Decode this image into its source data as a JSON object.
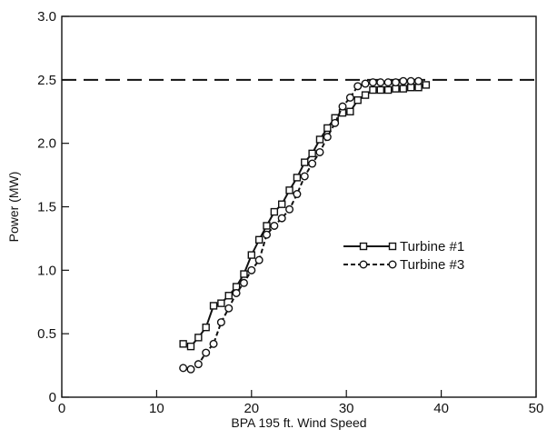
{
  "chart_data": {
    "type": "line",
    "title": "",
    "xlabel": "BPA 195 ft. Wind Speed",
    "ylabel": "Power (MW)",
    "xlim": [
      0,
      50
    ],
    "ylim": [
      0,
      3.0
    ],
    "x_ticks": [
      0,
      10,
      20,
      30,
      40,
      50
    ],
    "y_ticks": [
      0,
      0.5,
      1.0,
      1.5,
      2.0,
      2.5,
      3.0
    ],
    "x_tick_labels": [
      "0",
      "10",
      "20",
      "30",
      "40",
      "50"
    ],
    "y_tick_labels": [
      "0",
      "0.5",
      "1.0",
      "1.5",
      "2.0",
      "2.5",
      "3.0"
    ],
    "grid": false,
    "legend_position": "center-right",
    "reference_line": {
      "y": 2.5,
      "style": "dashed"
    },
    "series": [
      {
        "name": "Turbine #1",
        "line_style": "solid",
        "marker": "square",
        "color": "#111111",
        "x": [
          12.8,
          13.6,
          14.4,
          15.2,
          16.0,
          16.8,
          17.6,
          18.4,
          19.2,
          20.0,
          20.8,
          21.6,
          22.4,
          23.2,
          24.0,
          24.8,
          25.6,
          26.4,
          27.2,
          28.0,
          28.8,
          29.6,
          30.4,
          31.2,
          32.0,
          32.8,
          33.6,
          34.4,
          35.2,
          36.0,
          36.8,
          37.6,
          38.4
        ],
        "y": [
          0.42,
          0.4,
          0.47,
          0.55,
          0.72,
          0.74,
          0.8,
          0.87,
          0.97,
          1.12,
          1.24,
          1.35,
          1.46,
          1.52,
          1.63,
          1.73,
          1.85,
          1.92,
          2.03,
          2.12,
          2.2,
          2.24,
          2.25,
          2.34,
          2.38,
          2.42,
          2.42,
          2.42,
          2.43,
          2.43,
          2.44,
          2.44,
          2.46
        ]
      },
      {
        "name": "Turbine #3",
        "line_style": "dashed",
        "marker": "circle",
        "color": "#111111",
        "x": [
          12.8,
          13.6,
          14.4,
          15.2,
          16.0,
          16.8,
          17.6,
          18.4,
          19.2,
          20.0,
          20.8,
          21.6,
          22.4,
          23.2,
          24.0,
          24.8,
          25.6,
          26.4,
          27.2,
          28.0,
          28.8,
          29.6,
          30.4,
          31.2,
          32.0,
          32.8,
          33.6,
          34.4,
          35.2,
          36.0,
          36.8,
          37.6
        ],
        "y": [
          0.23,
          0.22,
          0.26,
          0.35,
          0.42,
          0.59,
          0.7,
          0.82,
          0.9,
          1.0,
          1.08,
          1.28,
          1.35,
          1.41,
          1.48,
          1.6,
          1.74,
          1.84,
          1.93,
          2.05,
          2.16,
          2.29,
          2.36,
          2.45,
          2.47,
          2.48,
          2.48,
          2.48,
          2.48,
          2.49,
          2.49,
          2.49
        ]
      }
    ]
  }
}
